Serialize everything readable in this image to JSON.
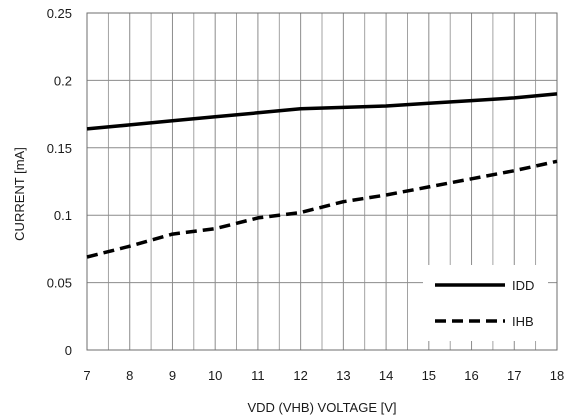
{
  "chart_data": {
    "type": "line",
    "title": "",
    "xlabel": "VDD (VHB) VOLTAGE [V]",
    "ylabel": "CURRENT [mA]",
    "xlim": [
      7,
      18
    ],
    "ylim": [
      0,
      0.25
    ],
    "x_ticks": [
      "7",
      "8",
      "9",
      "10",
      "11",
      "12",
      "13",
      "14",
      "15",
      "16",
      "17",
      "18"
    ],
    "y_ticks": [
      "0",
      "0.05",
      "0.1",
      "0.15",
      "0.2",
      "0.25"
    ],
    "minor_x_step": 0.5,
    "grid": true,
    "legend_position": "bottom-right",
    "x": [
      7,
      8,
      9,
      10,
      11,
      12,
      13,
      14,
      15,
      16,
      17,
      18
    ],
    "series": [
      {
        "name": "IDD",
        "style": "solid",
        "color": "#000000",
        "values": [
          0.164,
          0.167,
          0.17,
          0.173,
          0.176,
          0.179,
          0.18,
          0.181,
          0.183,
          0.185,
          0.187,
          0.19
        ]
      },
      {
        "name": "IHB",
        "style": "dashed",
        "color": "#000000",
        "values": [
          0.069,
          0.077,
          0.086,
          0.09,
          0.098,
          0.102,
          0.11,
          0.115,
          0.121,
          0.127,
          0.133,
          0.14
        ]
      }
    ]
  }
}
